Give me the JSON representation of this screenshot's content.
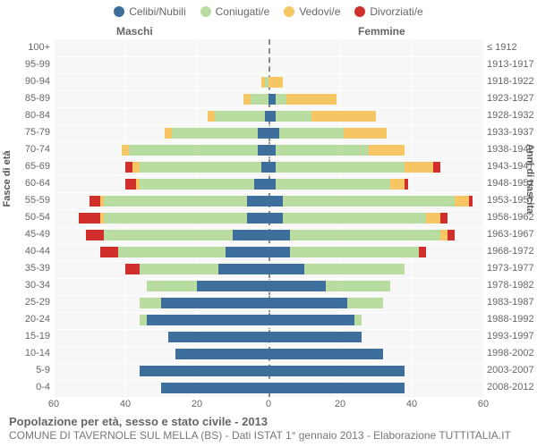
{
  "legend": [
    {
      "label": "Celibi/Nubili",
      "color": "#3d6e9c"
    },
    {
      "label": "Coniugati/e",
      "color": "#b9dca0"
    },
    {
      "label": "Vedovi/e",
      "color": "#f6c564"
    },
    {
      "label": "Divorziati/e",
      "color": "#d02f2c"
    }
  ],
  "gender_labels": {
    "m": "Maschi",
    "f": "Femmine"
  },
  "axis_titles": {
    "left": "Fasce di età",
    "right": "Anni di nascita"
  },
  "footer": {
    "title": "Popolazione per età, sesso e stato civile - 2013",
    "sub": "COMUNE DI TAVERNOLE SUL MELLA (BS) - Dati ISTAT 1° gennaio 2013 - Elaborazione TUTTITALIA.IT"
  },
  "scale": {
    "max": 60,
    "ticks": [
      60,
      40,
      20,
      0,
      20,
      40,
      60
    ]
  },
  "colors": {
    "background": "#f7f7f7",
    "grid": "#ffffff",
    "centerline": "#888888",
    "text": "#666666"
  },
  "rows": [
    {
      "age": "100+",
      "birth": "≤ 1912",
      "m": {
        "c": 0,
        "co": 0,
        "v": 0,
        "d": 0
      },
      "f": {
        "c": 0,
        "co": 0,
        "v": 0,
        "d": 0
      }
    },
    {
      "age": "95-99",
      "birth": "1913-1917",
      "m": {
        "c": 0,
        "co": 0,
        "v": 0,
        "d": 0
      },
      "f": {
        "c": 0,
        "co": 0,
        "v": 0,
        "d": 0
      }
    },
    {
      "age": "90-94",
      "birth": "1918-1922",
      "m": {
        "c": 0,
        "co": 1,
        "v": 1,
        "d": 0
      },
      "f": {
        "c": 0,
        "co": 0,
        "v": 4,
        "d": 0
      }
    },
    {
      "age": "85-89",
      "birth": "1923-1927",
      "m": {
        "c": 0,
        "co": 5,
        "v": 2,
        "d": 0
      },
      "f": {
        "c": 2,
        "co": 3,
        "v": 14,
        "d": 0
      }
    },
    {
      "age": "80-84",
      "birth": "1928-1932",
      "m": {
        "c": 1,
        "co": 14,
        "v": 2,
        "d": 0
      },
      "f": {
        "c": 2,
        "co": 10,
        "v": 18,
        "d": 0
      }
    },
    {
      "age": "75-79",
      "birth": "1933-1937",
      "m": {
        "c": 3,
        "co": 24,
        "v": 2,
        "d": 0
      },
      "f": {
        "c": 3,
        "co": 18,
        "v": 12,
        "d": 0
      }
    },
    {
      "age": "70-74",
      "birth": "1938-1942",
      "m": {
        "c": 3,
        "co": 36,
        "v": 2,
        "d": 0
      },
      "f": {
        "c": 2,
        "co": 26,
        "v": 10,
        "d": 0
      }
    },
    {
      "age": "65-69",
      "birth": "1943-1947",
      "m": {
        "c": 2,
        "co": 34,
        "v": 2,
        "d": 2
      },
      "f": {
        "c": 2,
        "co": 36,
        "v": 8,
        "d": 2
      }
    },
    {
      "age": "60-64",
      "birth": "1948-1952",
      "m": {
        "c": 4,
        "co": 32,
        "v": 1,
        "d": 3
      },
      "f": {
        "c": 2,
        "co": 32,
        "v": 4,
        "d": 1
      }
    },
    {
      "age": "55-59",
      "birth": "1953-1957",
      "m": {
        "c": 6,
        "co": 40,
        "v": 1,
        "d": 3
      },
      "f": {
        "c": 4,
        "co": 48,
        "v": 4,
        "d": 1
      }
    },
    {
      "age": "50-54",
      "birth": "1958-1962",
      "m": {
        "c": 6,
        "co": 40,
        "v": 1,
        "d": 6
      },
      "f": {
        "c": 4,
        "co": 40,
        "v": 4,
        "d": 2
      }
    },
    {
      "age": "45-49",
      "birth": "1963-1967",
      "m": {
        "c": 10,
        "co": 36,
        "v": 0,
        "d": 5
      },
      "f": {
        "c": 6,
        "co": 42,
        "v": 2,
        "d": 2
      }
    },
    {
      "age": "40-44",
      "birth": "1968-1972",
      "m": {
        "c": 12,
        "co": 30,
        "v": 0,
        "d": 5
      },
      "f": {
        "c": 6,
        "co": 36,
        "v": 0,
        "d": 2
      }
    },
    {
      "age": "35-39",
      "birth": "1973-1977",
      "m": {
        "c": 14,
        "co": 22,
        "v": 0,
        "d": 4
      },
      "f": {
        "c": 10,
        "co": 28,
        "v": 0,
        "d": 0
      }
    },
    {
      "age": "30-34",
      "birth": "1978-1982",
      "m": {
        "c": 20,
        "co": 14,
        "v": 0,
        "d": 0
      },
      "f": {
        "c": 16,
        "co": 18,
        "v": 0,
        "d": 0
      }
    },
    {
      "age": "25-29",
      "birth": "1983-1987",
      "m": {
        "c": 30,
        "co": 6,
        "v": 0,
        "d": 0
      },
      "f": {
        "c": 22,
        "co": 10,
        "v": 0,
        "d": 0
      }
    },
    {
      "age": "20-24",
      "birth": "1988-1992",
      "m": {
        "c": 34,
        "co": 2,
        "v": 0,
        "d": 0
      },
      "f": {
        "c": 24,
        "co": 2,
        "v": 0,
        "d": 0
      }
    },
    {
      "age": "15-19",
      "birth": "1993-1997",
      "m": {
        "c": 28,
        "co": 0,
        "v": 0,
        "d": 0
      },
      "f": {
        "c": 26,
        "co": 0,
        "v": 0,
        "d": 0
      }
    },
    {
      "age": "10-14",
      "birth": "1998-2002",
      "m": {
        "c": 26,
        "co": 0,
        "v": 0,
        "d": 0
      },
      "f": {
        "c": 32,
        "co": 0,
        "v": 0,
        "d": 0
      }
    },
    {
      "age": "5-9",
      "birth": "2003-2007",
      "m": {
        "c": 36,
        "co": 0,
        "v": 0,
        "d": 0
      },
      "f": {
        "c": 38,
        "co": 0,
        "v": 0,
        "d": 0
      }
    },
    {
      "age": "0-4",
      "birth": "2008-2012",
      "m": {
        "c": 30,
        "co": 0,
        "v": 0,
        "d": 0
      },
      "f": {
        "c": 38,
        "co": 0,
        "v": 0,
        "d": 0
      }
    }
  ]
}
